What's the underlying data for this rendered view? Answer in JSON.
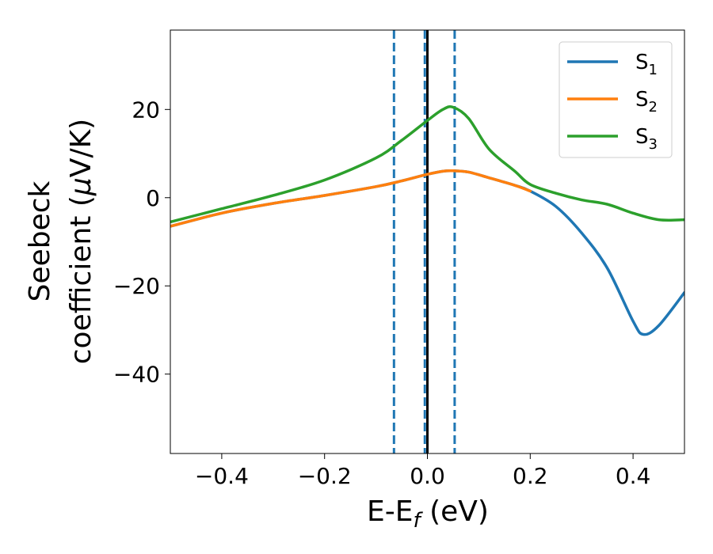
{
  "chart_data": {
    "type": "line",
    "title": "",
    "xlabel": "E-E_f (eV)",
    "xlabel_main": "E-E",
    "xlabel_sub": "f",
    "xlabel_tail": " (eV)",
    "ylabel": "Seebeck coefficient (μV/K)",
    "ylabel_line1": "Seebeck",
    "ylabel_line2_prefix": "coefficient  (",
    "ylabel_mu": "μ",
    "ylabel_line2_suffix": "V/K)",
    "xlim": [
      -0.5,
      0.5
    ],
    "ylim": [
      -58,
      38
    ],
    "xticks": [
      -0.4,
      -0.2,
      0.0,
      0.2,
      0.4
    ],
    "xtick_labels": [
      "−0.4",
      "−0.2",
      "0.0",
      "0.2",
      "0.4"
    ],
    "yticks": [
      -40,
      -20,
      0,
      20
    ],
    "ytick_labels": [
      "−40",
      "−20",
      "0",
      "20"
    ],
    "legend_position": "top-right",
    "vlines": [
      {
        "x": -0.065,
        "style": "dashed",
        "color": "#1f77b4"
      },
      {
        "x": -0.005,
        "style": "dashed",
        "color": "#1f77b4"
      },
      {
        "x": 0.053,
        "style": "dashed",
        "color": "#1f77b4"
      },
      {
        "x": 0.0,
        "style": "solid",
        "color": "#000000"
      }
    ],
    "series": [
      {
        "name": "S",
        "sub": "1",
        "color": "#1f77b4",
        "x": [
          -0.5,
          -0.4,
          -0.3,
          -0.2,
          -0.1,
          -0.05,
          0.0,
          0.03,
          0.05,
          0.08,
          0.12,
          0.17,
          0.2,
          0.25,
          0.3,
          0.35,
          0.4,
          0.42,
          0.45,
          0.5
        ],
        "y": [
          -6.5,
          -3.5,
          -1.3,
          0.5,
          2.5,
          3.8,
          5.3,
          6.0,
          6.1,
          5.8,
          4.5,
          2.8,
          1.5,
          -2.0,
          -8.0,
          -16.0,
          -28.0,
          -31.0,
          -29.0,
          -21.5
        ]
      },
      {
        "name": "S",
        "sub": "2",
        "color": "#ff7f0e",
        "x": [
          -0.5,
          -0.4,
          -0.3,
          -0.2,
          -0.1,
          -0.05,
          0.0,
          0.03,
          0.05,
          0.08,
          0.12,
          0.17,
          0.2
        ],
        "y": [
          -6.5,
          -3.5,
          -1.3,
          0.5,
          2.5,
          3.8,
          5.3,
          6.0,
          6.1,
          5.8,
          4.5,
          2.8,
          1.5
        ]
      },
      {
        "name": "S",
        "sub": "3",
        "color": "#2ca02c",
        "x": [
          -0.5,
          -0.4,
          -0.3,
          -0.2,
          -0.1,
          -0.05,
          0.0,
          0.03,
          0.05,
          0.08,
          0.12,
          0.17,
          0.2,
          0.25,
          0.3,
          0.35,
          0.4,
          0.45,
          0.5
        ],
        "y": [
          -5.5,
          -2.5,
          0.5,
          4.0,
          9.0,
          13.0,
          17.5,
          20.0,
          20.5,
          18.0,
          11.0,
          6.0,
          3.0,
          1.0,
          -0.5,
          -1.5,
          -3.5,
          -5.0,
          -5.0
        ]
      }
    ]
  }
}
